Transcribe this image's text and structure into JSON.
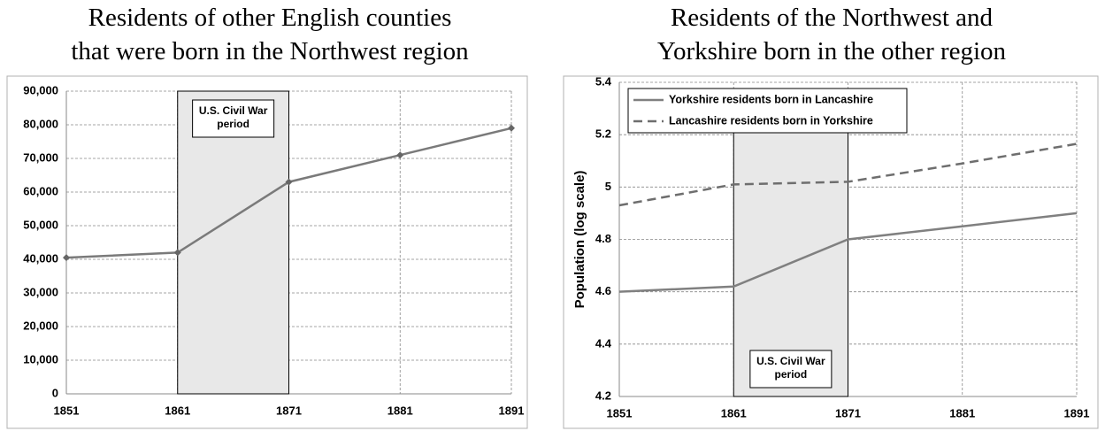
{
  "chart_data": [
    {
      "type": "line",
      "title": [
        "Residents of other English counties",
        "that were born in the Northwest region"
      ],
      "x": [
        1851,
        1861,
        1871,
        1881,
        1891
      ],
      "values": [
        40500,
        42000,
        63000,
        71000,
        79000
      ],
      "color": "#7a7a7a",
      "marker": "diamond",
      "xlim": [
        1851,
        1891
      ],
      "xticks": [
        1851,
        1861,
        1871,
        1881,
        1891
      ],
      "ylim": [
        0,
        90000
      ],
      "yticks": [
        0,
        {
          "value": 10000,
          "label": "10,000"
        },
        {
          "value": 20000,
          "label": "20,000"
        },
        {
          "value": 30000,
          "label": "30,000"
        },
        {
          "value": 40000,
          "label": "40,000"
        },
        {
          "value": 50000,
          "label": "50,000"
        },
        {
          "value": 60000,
          "label": "60,000"
        },
        {
          "value": 70000,
          "label": "70,000"
        },
        {
          "value": 80000,
          "label": "80,000"
        },
        {
          "value": 90000,
          "label": "90,000"
        }
      ],
      "grid": true,
      "shaded_span": {
        "x": [
          1861,
          1871
        ],
        "label": "U.S. Civil War period"
      }
    },
    {
      "type": "line",
      "title": [
        "Residents of the Northwest and",
        "Yorkshire born in the other region"
      ],
      "ylabel": "Population (log scale)",
      "x": [
        1851,
        1861,
        1871,
        1881,
        1891
      ],
      "series": [
        {
          "name": "Yorkshire residents born in Lancashire",
          "color": "#808080",
          "dash": "solid",
          "values": [
            4.6,
            4.62,
            4.8,
            4.85,
            4.9
          ]
        },
        {
          "name": "Lancashire residents born in Yorkshire",
          "color": "#6e6e6e",
          "dash": "dashed",
          "values": [
            4.93,
            5.01,
            5.02,
            5.09,
            5.165
          ]
        }
      ],
      "xlim": [
        1851,
        1891
      ],
      "xticks": [
        1851,
        1861,
        1871,
        1881,
        1891
      ],
      "ylim": [
        4.2,
        5.4
      ],
      "yticks": [
        4.2,
        4.4,
        4.6,
        4.8,
        5,
        5.2,
        5.4
      ],
      "grid": true,
      "legend": "upper left",
      "shaded_span": {
        "x": [
          1861,
          1871
        ],
        "label": "U.S. Civil War period"
      }
    }
  ]
}
